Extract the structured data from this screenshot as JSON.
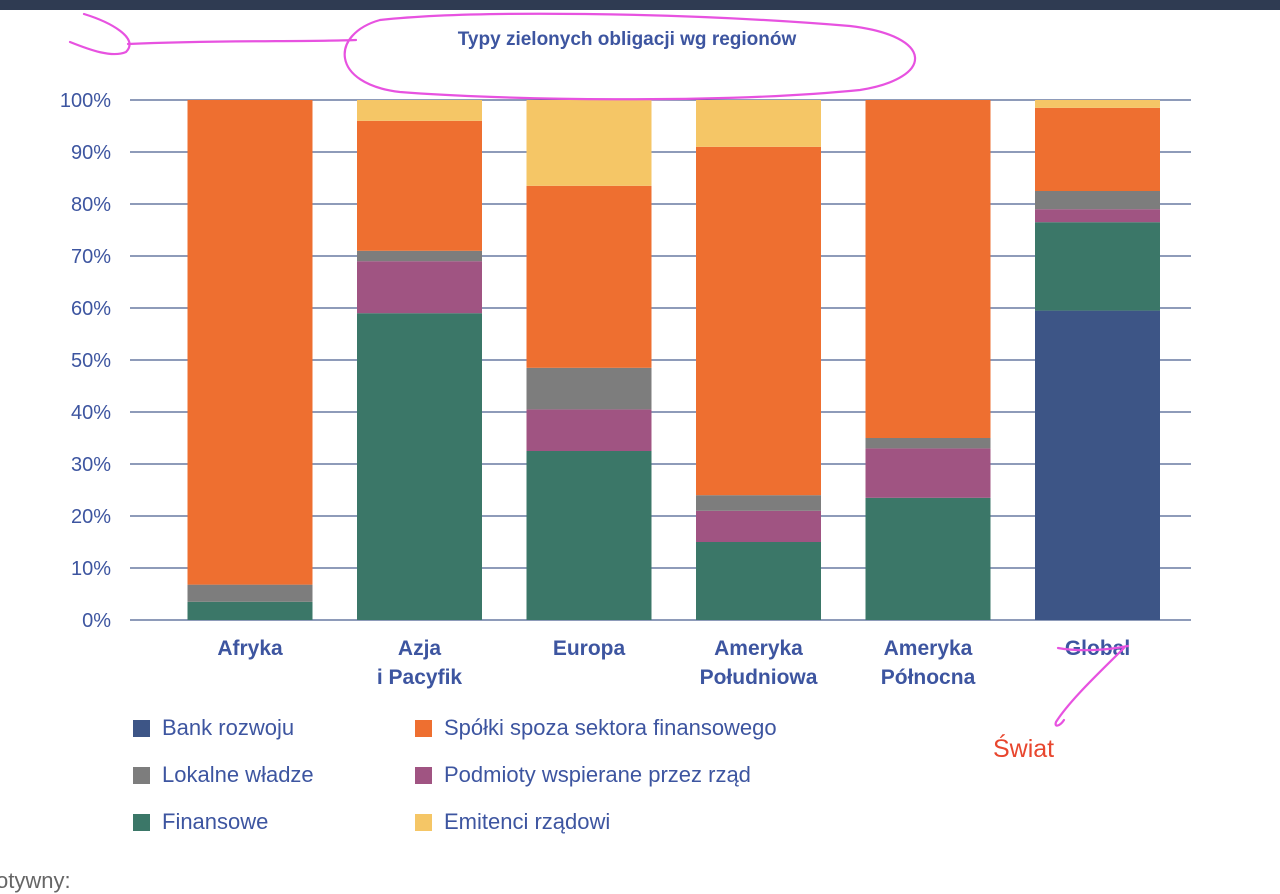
{
  "chart_data": {
    "type": "bar",
    "stacked": true,
    "title": "Typy zielonych obligacji wg regionów",
    "categories": [
      [
        "Afryka"
      ],
      [
        "Azja",
        "i Pacyfik"
      ],
      [
        "Europa"
      ],
      [
        "Ameryka",
        "Południowa"
      ],
      [
        "Ameryka",
        "Północna"
      ],
      [
        "Global"
      ]
    ],
    "ylim": [
      0,
      100
    ],
    "yticks": [
      "0%",
      "10%",
      "20%",
      "30%",
      "40%",
      "50%",
      "60%",
      "70%",
      "80%",
      "90%",
      "100%"
    ],
    "grid": true,
    "legend_position": "bottom",
    "series": [
      {
        "name": "Bank rozwoju",
        "color": "#3d5586",
        "values": [
          0,
          0,
          0,
          0,
          0,
          59.5
        ]
      },
      {
        "name": "Finansowe",
        "color": "#3b7768",
        "values": [
          3.5,
          59,
          32.5,
          15,
          23.5,
          17
        ]
      },
      {
        "name": "Podmioty wspierane przez rząd",
        "color": "#a05482",
        "values": [
          0,
          10,
          8,
          6,
          9.5,
          2.5
        ]
      },
      {
        "name": "Lokalne władze",
        "color": "#7d7d7d",
        "values": [
          3.3,
          2,
          8,
          3,
          2,
          3.5
        ]
      },
      {
        "name": "Spółki spoza sektora finansowego",
        "color": "#ee6f30",
        "values": [
          93.2,
          25,
          35,
          67,
          65,
          16
        ]
      },
      {
        "name": "Emitenci rządowi",
        "color": "#f5c666",
        "values": [
          0,
          4,
          16.5,
          9,
          0,
          1.5
        ]
      }
    ],
    "annotations": [
      {
        "text": "Świat",
        "color": "#e8462e"
      }
    ]
  },
  "legend_order": [
    0,
    4,
    3,
    2,
    1,
    5
  ],
  "bottom_text": "otywny:"
}
